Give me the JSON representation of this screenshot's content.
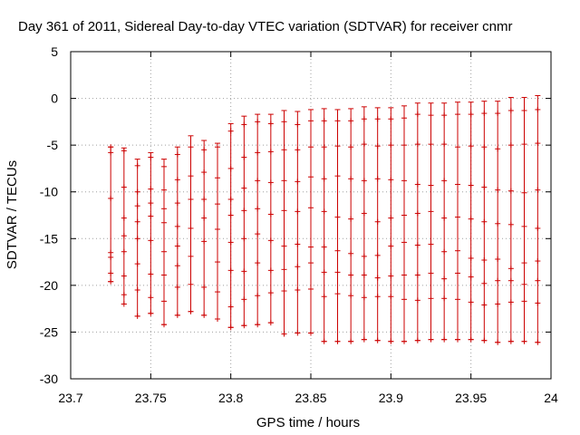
{
  "chart_data": {
    "type": "errorbar",
    "title": "Day 361 of 2011, Sidereal Day-to-day VTEC variation (SDTVAR) for receiver cnmr",
    "xlabel": "GPS time / hours",
    "ylabel": "SDTVAR / TECUs",
    "xlim": [
      23.7,
      24.0
    ],
    "ylim": [
      -30,
      5
    ],
    "xticks": [
      23.7,
      23.75,
      23.8,
      23.85,
      23.9,
      23.95,
      24.0
    ],
    "xtick_labels": [
      "23.7",
      "23.75",
      "23.8",
      "23.85",
      "23.9",
      "23.95",
      "24"
    ],
    "yticks": [
      -30,
      -25,
      -20,
      -15,
      -10,
      -5,
      0,
      5
    ],
    "ytick_labels": [
      "-30",
      "-25",
      "-20",
      "-15",
      "-10",
      "-5",
      "0",
      "5"
    ],
    "grid": true,
    "color": "#cc0000",
    "series": [
      {
        "x": 23.725,
        "high": -5.2,
        "low": -19.6,
        "points": [
          -5.2,
          -5.8,
          -10.7,
          -16.5,
          -17.0,
          -18.7,
          -19.6
        ]
      },
      {
        "x": 23.7333,
        "high": -5.3,
        "low": -22.0,
        "points": [
          -5.6,
          -9.5,
          -12.8,
          -14.7,
          -16.4,
          -19.0,
          -21.0,
          -22.0
        ]
      },
      {
        "x": 23.7417,
        "high": -6.5,
        "low": -23.3,
        "points": [
          -7.2,
          -10.0,
          -11.5,
          -13.2,
          -15.0,
          -17.7,
          -20.5,
          -23.3
        ]
      },
      {
        "x": 23.75,
        "high": -5.8,
        "low": -23.0,
        "points": [
          -6.3,
          -9.7,
          -11.2,
          -12.6,
          -15.2,
          -18.8,
          -21.3,
          -23.0
        ]
      },
      {
        "x": 23.7583,
        "high": -6.5,
        "low": -24.2,
        "points": [
          -7.3,
          -9.8,
          -11.8,
          -13.3,
          -16.4,
          -18.9,
          -21.7,
          -24.2
        ]
      },
      {
        "x": 23.7667,
        "high": -5.2,
        "low": -23.2,
        "points": [
          -6.0,
          -8.7,
          -11.2,
          -13.7,
          -15.8,
          -17.9,
          -20.2,
          -23.2
        ]
      },
      {
        "x": 23.775,
        "high": -4.0,
        "low": -22.8,
        "points": [
          -5.2,
          -8.3,
          -10.8,
          -13.9,
          -16.9,
          -19.9,
          -22.8
        ]
      },
      {
        "x": 23.7833,
        "high": -4.5,
        "low": -23.2,
        "points": [
          -5.5,
          -7.9,
          -10.8,
          -12.8,
          -15.3,
          -20.2,
          -23.2
        ]
      },
      {
        "x": 23.7917,
        "high": -4.8,
        "low": -23.6,
        "points": [
          -5.2,
          -8.5,
          -11.3,
          -14.0,
          -17.5,
          -20.7,
          -23.6
        ]
      },
      {
        "x": 23.8,
        "high": -2.7,
        "low": -24.5,
        "points": [
          -3.5,
          -7.5,
          -10.8,
          -12.5,
          -15.4,
          -18.4,
          -22.3,
          -24.5
        ]
      },
      {
        "x": 23.8083,
        "high": -1.9,
        "low": -24.3,
        "points": [
          -2.8,
          -6.3,
          -9.6,
          -12.0,
          -15.0,
          -18.5,
          -21.5,
          -24.3
        ]
      },
      {
        "x": 23.8167,
        "high": -1.7,
        "low": -24.2,
        "points": [
          -2.5,
          -5.8,
          -8.8,
          -11.8,
          -14.5,
          -17.6,
          -21.1,
          -24.2
        ]
      },
      {
        "x": 23.825,
        "high": -1.7,
        "low": -24.0,
        "points": [
          -2.7,
          -5.7,
          -9.0,
          -12.4,
          -15.2,
          -18.4,
          -20.8,
          -24.0
        ]
      },
      {
        "x": 23.8333,
        "high": -1.3,
        "low": -25.2,
        "points": [
          -2.5,
          -5.5,
          -8.8,
          -12.0,
          -15.8,
          -18.3,
          -20.6,
          -25.2
        ]
      },
      {
        "x": 23.8417,
        "high": -1.4,
        "low": -25.1,
        "points": [
          -2.8,
          -5.5,
          -8.9,
          -12.1,
          -15.6,
          -18.0,
          -20.5,
          -25.1
        ]
      },
      {
        "x": 23.85,
        "high": -1.2,
        "low": -25.1,
        "points": [
          -2.4,
          -5.2,
          -8.4,
          -11.7,
          -15.9,
          -17.6,
          -20.4,
          -25.1
        ]
      },
      {
        "x": 23.8583,
        "high": -1.1,
        "low": -26.0,
        "points": [
          -2.4,
          -5.2,
          -8.6,
          -12.1,
          -15.9,
          -18.6,
          -21.2,
          -26.0
        ]
      },
      {
        "x": 23.8667,
        "high": -1.2,
        "low": -26.0,
        "points": [
          -2.4,
          -5.1,
          -8.3,
          -12.7,
          -16.3,
          -18.6,
          -20.9,
          -26.0
        ]
      },
      {
        "x": 23.875,
        "high": -1.1,
        "low": -26.0,
        "points": [
          -2.4,
          -5.2,
          -8.6,
          -12.9,
          -16.6,
          -18.9,
          -21.1,
          -26.0
        ]
      },
      {
        "x": 23.8833,
        "high": -0.9,
        "low": -25.8,
        "points": [
          -2.2,
          -4.9,
          -8.8,
          -12.3,
          -16.9,
          -18.9,
          -21.3,
          -25.8
        ]
      },
      {
        "x": 23.8917,
        "high": -1.0,
        "low": -25.9,
        "points": [
          -2.2,
          -5.1,
          -8.6,
          -13.2,
          -16.8,
          -19.2,
          -21.2,
          -25.9
        ]
      },
      {
        "x": 23.9,
        "high": -1.0,
        "low": -26.0,
        "points": [
          -2.2,
          -5.0,
          -8.7,
          -12.8,
          -15.8,
          -19.0,
          -21.2,
          -26.0
        ]
      },
      {
        "x": 23.9083,
        "high": -0.8,
        "low": -26.0,
        "points": [
          -2.1,
          -5.0,
          -8.8,
          -12.5,
          -15.4,
          -18.9,
          -21.5,
          -26.0
        ]
      },
      {
        "x": 23.9167,
        "high": -0.5,
        "low": -25.9,
        "points": [
          -1.7,
          -4.9,
          -9.2,
          -12.3,
          -15.7,
          -18.9,
          -21.6,
          -25.9
        ]
      },
      {
        "x": 23.925,
        "high": -0.5,
        "low": -25.8,
        "points": [
          -1.8,
          -4.9,
          -9.3,
          -12.1,
          -15.6,
          -18.7,
          -21.4,
          -25.8
        ]
      },
      {
        "x": 23.9333,
        "high": -0.5,
        "low": -25.8,
        "points": [
          -1.8,
          -4.9,
          -8.8,
          -12.8,
          -16.4,
          -19.3,
          -21.4,
          -25.8
        ]
      },
      {
        "x": 23.9417,
        "high": -0.4,
        "low": -25.8,
        "points": [
          -1.7,
          -5.2,
          -9.2,
          -12.7,
          -16.3,
          -18.7,
          -21.5,
          -25.8
        ]
      },
      {
        "x": 23.95,
        "high": -0.4,
        "low": -25.8,
        "points": [
          -1.7,
          -5.1,
          -9.3,
          -12.9,
          -17.1,
          -19.1,
          -21.8,
          -25.8
        ]
      },
      {
        "x": 23.9583,
        "high": -0.3,
        "low": -25.9,
        "points": [
          -1.6,
          -5.2,
          -9.5,
          -13.2,
          -17.3,
          -19.8,
          -22.1,
          -25.9
        ]
      },
      {
        "x": 23.9667,
        "high": -0.3,
        "low": -26.1,
        "points": [
          -1.6,
          -5.4,
          -9.8,
          -13.4,
          -17.2,
          -19.5,
          -22.0,
          -26.1
        ]
      },
      {
        "x": 23.975,
        "high": 0.1,
        "low": -26.0,
        "points": [
          -1.3,
          -5.0,
          -9.9,
          -13.5,
          -18.2,
          -19.5,
          -21.8,
          -26.0
        ]
      },
      {
        "x": 23.9833,
        "high": 0.1,
        "low": -26.0,
        "points": [
          -1.3,
          -4.9,
          -10.1,
          -13.7,
          -17.6,
          -19.9,
          -21.7,
          -26.0
        ]
      },
      {
        "x": 23.9917,
        "high": 0.3,
        "low": -26.1,
        "points": [
          -1.2,
          -4.8,
          -9.8,
          -13.9,
          -17.4,
          -19.5,
          -21.9,
          -26.1
        ]
      }
    ]
  }
}
